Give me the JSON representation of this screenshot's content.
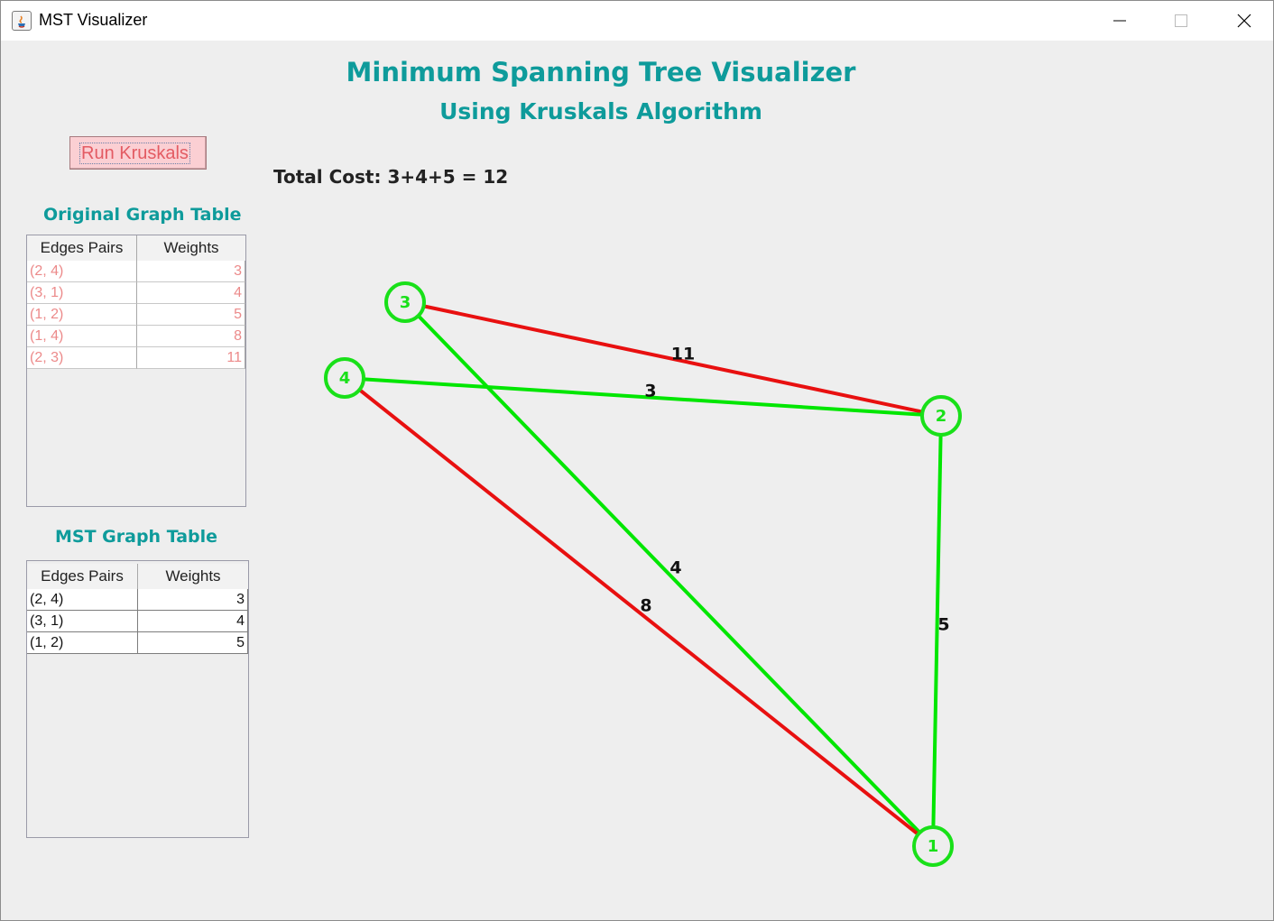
{
  "window": {
    "title": "MST Visualizer"
  },
  "header": {
    "title": "Minimum Spanning Tree Visualizer",
    "subtitle": "Using Kruskals Algorithm"
  },
  "controls": {
    "run_label": "Run Kruskals"
  },
  "total_cost": "Total Cost: 3+4+5 = 12",
  "original_table": {
    "title": "Original Graph Table",
    "columns": [
      "Edges Pairs",
      "Weights"
    ],
    "rows": [
      [
        "(2, 4)",
        "3"
      ],
      [
        "(3, 1)",
        "4"
      ],
      [
        "(1, 2)",
        "5"
      ],
      [
        "(1, 4)",
        "8"
      ],
      [
        "(2, 3)",
        "11"
      ]
    ]
  },
  "mst_table": {
    "title": "MST Graph Table",
    "columns": [
      "Edges Pairs",
      "Weights"
    ],
    "rows": [
      [
        "(2, 4)",
        "3"
      ],
      [
        "(3, 1)",
        "4"
      ],
      [
        "(1, 2)",
        "5"
      ]
    ]
  },
  "graph": {
    "nodes": [
      "1",
      "2",
      "3",
      "4"
    ],
    "edges": [
      {
        "from": "2",
        "to": "3",
        "weight": "11",
        "in_mst": false
      },
      {
        "from": "2",
        "to": "4",
        "weight": "3",
        "in_mst": true
      },
      {
        "from": "3",
        "to": "1",
        "weight": "4",
        "in_mst": true
      },
      {
        "from": "1",
        "to": "4",
        "weight": "8",
        "in_mst": false
      },
      {
        "from": "1",
        "to": "2",
        "weight": "5",
        "in_mst": true
      }
    ]
  },
  "colors": {
    "accent": "#0e9b9b",
    "mst_edge": "#00e600",
    "rejected_edge": "#e81010",
    "node": "#19e019",
    "button_bg": "#fbcfd3",
    "button_text": "#e35b63",
    "original_table_text": "#ec8a8a"
  }
}
